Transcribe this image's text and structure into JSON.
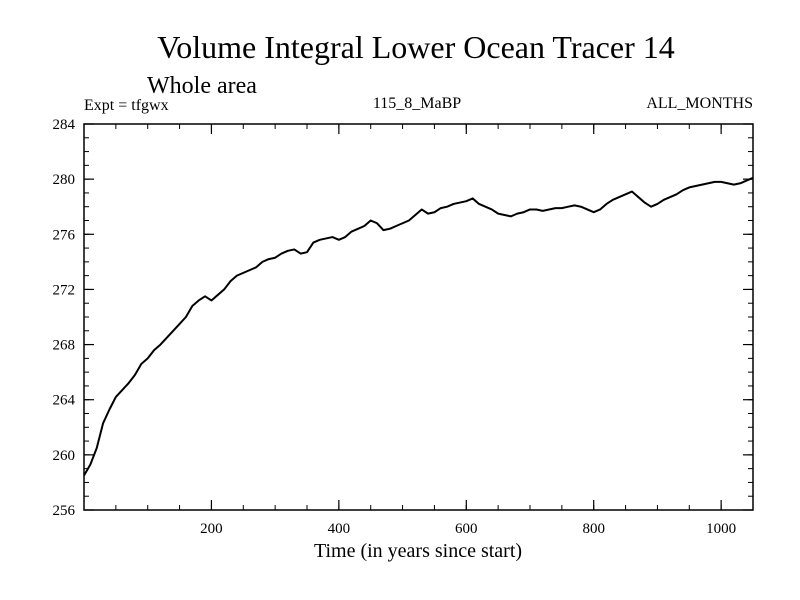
{
  "chart_data": {
    "type": "line",
    "title": "Volume Integral Lower Ocean Tracer 14",
    "subtitle": "Whole area",
    "left_label": "Expt = tfgwx",
    "center_label": "115_8_MaBP",
    "right_label": "ALL_MONTHS",
    "xlabel": "Time (in years since start)",
    "ylabel": "",
    "xlim": [
      0,
      1050
    ],
    "ylim": [
      256,
      284
    ],
    "x_ticks": [
      200,
      400,
      600,
      800,
      1000
    ],
    "y_ticks": [
      256,
      260,
      264,
      268,
      272,
      276,
      280,
      284
    ],
    "x_minor_step": 50,
    "y_minor_step": 1,
    "grid": false,
    "series": [
      {
        "name": "tfgwx",
        "color": "#000000",
        "x": [
          0,
          10,
          20,
          30,
          40,
          50,
          60,
          70,
          80,
          90,
          100,
          110,
          120,
          130,
          140,
          150,
          160,
          170,
          180,
          190,
          200,
          210,
          220,
          230,
          240,
          250,
          260,
          270,
          280,
          290,
          300,
          310,
          320,
          330,
          340,
          350,
          360,
          370,
          380,
          390,
          400,
          410,
          420,
          430,
          440,
          450,
          460,
          470,
          480,
          490,
          500,
          510,
          520,
          530,
          540,
          550,
          560,
          570,
          580,
          590,
          600,
          610,
          620,
          630,
          640,
          650,
          660,
          670,
          680,
          690,
          700,
          710,
          720,
          730,
          740,
          750,
          760,
          770,
          780,
          790,
          800,
          810,
          820,
          830,
          840,
          850,
          860,
          870,
          880,
          890,
          900,
          910,
          920,
          930,
          940,
          950,
          960,
          970,
          980,
          990,
          1000,
          1010,
          1020,
          1030,
          1040,
          1050
        ],
        "values": [
          258.5,
          259.3,
          260.5,
          262.3,
          263.3,
          264.2,
          264.7,
          265.2,
          265.8,
          266.6,
          267.0,
          267.6,
          268.0,
          268.5,
          269.0,
          269.5,
          270.0,
          270.8,
          271.2,
          271.5,
          271.2,
          271.6,
          272.0,
          272.6,
          273.0,
          273.2,
          273.4,
          273.6,
          274.0,
          274.2,
          274.3,
          274.6,
          274.8,
          274.9,
          274.6,
          274.7,
          275.4,
          275.6,
          275.7,
          275.8,
          275.6,
          275.8,
          276.2,
          276.4,
          276.6,
          277.0,
          276.8,
          276.3,
          276.4,
          276.6,
          276.8,
          277.0,
          277.4,
          277.8,
          277.5,
          277.6,
          277.9,
          278.0,
          278.2,
          278.3,
          278.4,
          278.6,
          278.2,
          278.0,
          277.8,
          277.5,
          277.4,
          277.3,
          277.5,
          277.6,
          277.8,
          277.8,
          277.7,
          277.8,
          277.9,
          277.9,
          278.0,
          278.1,
          278.0,
          277.8,
          277.6,
          277.8,
          278.2,
          278.5,
          278.7,
          278.9,
          279.1,
          278.7,
          278.3,
          278.0,
          278.2,
          278.5,
          278.7,
          278.9,
          279.2,
          279.4,
          279.5,
          279.6,
          279.7,
          279.8,
          279.8,
          279.7,
          279.6,
          279.7,
          279.9,
          280.1
        ]
      }
    ]
  }
}
